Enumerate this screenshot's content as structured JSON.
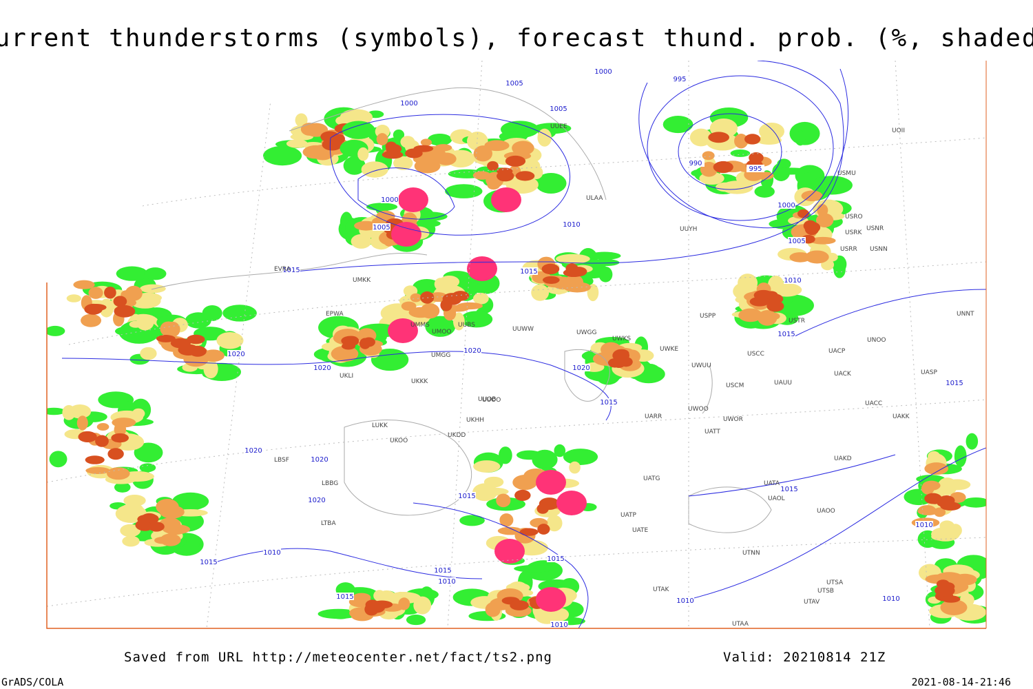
{
  "title": "Current thunderstorms (symbols), forecast thund. prob. (%, shaded)",
  "footer": {
    "source": "Saved from URL http://meteocenter.net/fact/ts2.png",
    "valid": "Valid: 20210814 21Z",
    "credit": "GrADS/COLA",
    "timestamp": "2021-08-14-21:46"
  },
  "isobar_labels": [
    "1000",
    "1005",
    "1000",
    "1005",
    "995",
    "990",
    "995",
    "1000",
    "1005",
    "1010",
    "1015",
    "1000",
    "1005",
    "1010",
    "1015",
    "1015",
    "1020",
    "1020",
    "1020",
    "1020",
    "1015",
    "1020",
    "1020",
    "1020",
    "1015",
    "1015",
    "1015",
    "1010",
    "1015",
    "1015",
    "1010",
    "1015",
    "1010",
    "1010",
    "1010",
    "1010",
    "1015"
  ],
  "stations": [
    "EVRA",
    "UMKK",
    "EPWA",
    "UMMS",
    "UMOO",
    "UUBS",
    "UUWW",
    "UWGG",
    "UWKS",
    "UWKE",
    "UWUU",
    "USPP",
    "USTR",
    "USCC",
    "UNOO",
    "UNNT",
    "UACP",
    "UACK",
    "UASP",
    "UAUU",
    "USCM",
    "UWOO",
    "UWOR",
    "UARR",
    "UATT",
    "UACC",
    "UAKK",
    "UAKD",
    "UATA",
    "UAOL",
    "UAOO",
    "UATG",
    "UATP",
    "UATE",
    "UTNN",
    "UTAK",
    "UTAA",
    "UTSA",
    "UTSB",
    "UTAV",
    "UMGG",
    "UKLI",
    "UUOO",
    "UUOB",
    "UKKK",
    "LUKK",
    "UKOO",
    "UKHH",
    "UKDD",
    "LBBG",
    "LBSF",
    "LTBA",
    "USMU",
    "USRO",
    "USRK",
    "USNR",
    "USRR",
    "USNN",
    "UOII",
    "UUYH",
    "ULAA",
    "UUEE"
  ]
}
